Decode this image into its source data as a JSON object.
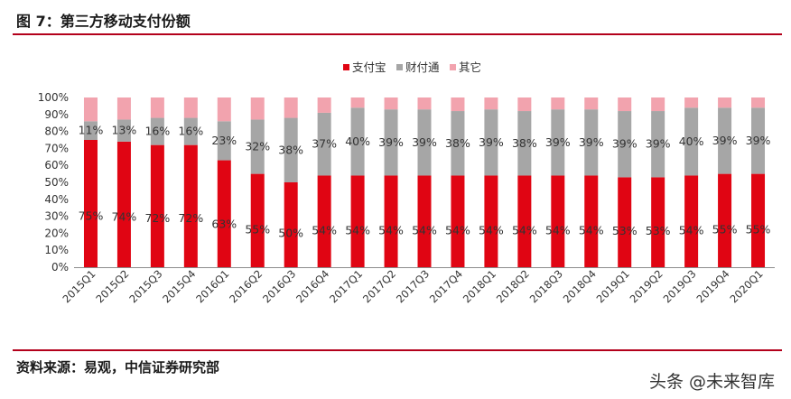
{
  "header": {
    "title": "图 7：第三方移动支付份额"
  },
  "footer": {
    "source": "资料来源：易观，中信证券研究部",
    "watermark": "头条 @未来智库"
  },
  "colors": {
    "alipay": "#e00513",
    "wechat": "#a6a6a6",
    "other": "#f2a3ae",
    "accent": "#b3001b"
  },
  "chart_data": {
    "type": "bar",
    "stacked": true,
    "title": "",
    "xlabel": "",
    "ylabel": "",
    "ylim": [
      0,
      100
    ],
    "yticks": [
      "0%",
      "10%",
      "20%",
      "30%",
      "40%",
      "50%",
      "60%",
      "70%",
      "80%",
      "90%",
      "100%"
    ],
    "legend_position": "top-right",
    "categories": [
      "2015Q1",
      "2015Q2",
      "2015Q3",
      "2015Q4",
      "2016Q1",
      "2016Q2",
      "2016Q3",
      "2016Q4",
      "2017Q1",
      "2017Q2",
      "2017Q3",
      "2017Q4",
      "2018Q1",
      "2018Q2",
      "2018Q3",
      "2018Q4",
      "2019Q1",
      "2019Q2",
      "2019Q3",
      "2019Q4",
      "2020Q1"
    ],
    "series": [
      {
        "name": "支付宝",
        "values": [
          75,
          74,
          72,
          72,
          63,
          55,
          50,
          54,
          54,
          54,
          54,
          54,
          54,
          54,
          54,
          54,
          53,
          53,
          54,
          55,
          55
        ],
        "labels": [
          "75%",
          "74%",
          "72%",
          "72%",
          "63%",
          "55%",
          "50%",
          "54%",
          "54%",
          "54%",
          "54%",
          "54%",
          "54%",
          "54%",
          "54%",
          "54%",
          "53%",
          "53%",
          "54%",
          "55%",
          "55%"
        ]
      },
      {
        "name": "财付通",
        "values": [
          11,
          13,
          16,
          16,
          23,
          32,
          38,
          37,
          40,
          39,
          39,
          38,
          39,
          38,
          39,
          39,
          39,
          39,
          40,
          39,
          39
        ],
        "labels": [
          "11%",
          "13%",
          "16%",
          "16%",
          "23%",
          "32%",
          "38%",
          "37%",
          "40%",
          "39%",
          "39%",
          "38%",
          "39%",
          "38%",
          "39%",
          "39%",
          "39%",
          "39%",
          "40%",
          "39%",
          "39%"
        ]
      },
      {
        "name": "其它",
        "values": [
          14,
          13,
          12,
          12,
          14,
          13,
          12,
          9,
          6,
          7,
          7,
          8,
          7,
          8,
          7,
          7,
          8,
          8,
          6,
          6,
          6
        ]
      }
    ]
  }
}
